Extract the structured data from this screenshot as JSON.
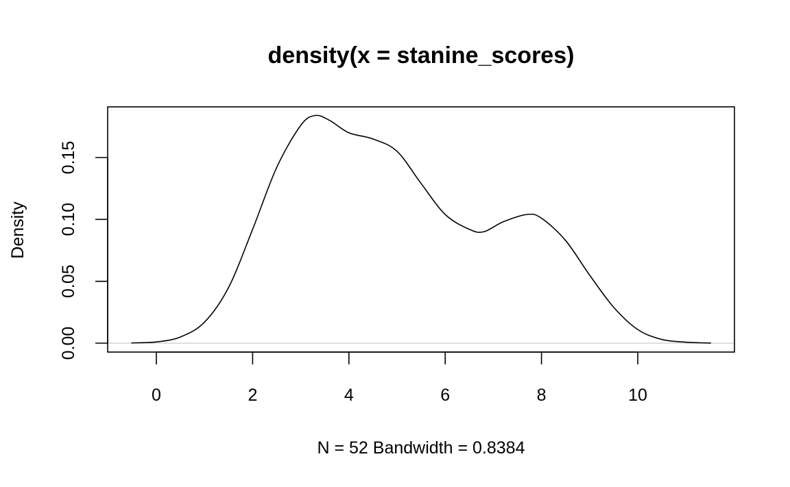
{
  "chart_data": {
    "type": "line",
    "title": "density(x = stanine_scores)",
    "xlabel": "N = 52   Bandwidth = 0.8384",
    "ylabel": "Density",
    "xlim": [
      -0.6,
      12.4
    ],
    "ylim": [
      -0.007,
      0.19
    ],
    "xticks": [
      0,
      2,
      4,
      6,
      8,
      10
    ],
    "xtick_labels": [
      "0",
      "2",
      "4",
      "6",
      "8",
      "10"
    ],
    "yticks": [
      0.0,
      0.05,
      0.1,
      0.15
    ],
    "ytick_labels": [
      "0.00",
      "0.05",
      "0.10",
      "0.15"
    ],
    "zero_line": true,
    "grid": false,
    "series": [
      {
        "x": [
          -0.52,
          0,
          0.5,
          1,
          1.5,
          2,
          2.5,
          3,
          3.3,
          3.6,
          4,
          4.5,
          5,
          5.5,
          6,
          6.5,
          6.8,
          7.2,
          7.7,
          8,
          8.5,
          9,
          9.5,
          10,
          10.5,
          11,
          11.52
        ],
        "y": [
          0.0002,
          0.001,
          0.005,
          0.017,
          0.045,
          0.092,
          0.142,
          0.176,
          0.184,
          0.18,
          0.17,
          0.165,
          0.155,
          0.129,
          0.104,
          0.092,
          0.09,
          0.098,
          0.104,
          0.101,
          0.083,
          0.055,
          0.029,
          0.011,
          0.003,
          0.0008,
          0.0001
        ]
      }
    ]
  }
}
